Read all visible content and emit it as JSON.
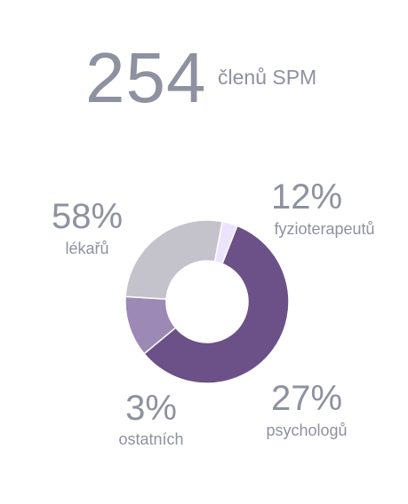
{
  "headline": {
    "count": "254",
    "caption": "členů SPM"
  },
  "chart_data": {
    "type": "pie",
    "style": "donut",
    "categories": [
      "lékařů",
      "fyzioterapeutů",
      "psychologů",
      "ostatních"
    ],
    "values": [
      58,
      12,
      27,
      3
    ],
    "value_labels": [
      "58%",
      "12%",
      "27%",
      "3%"
    ],
    "unit": "%",
    "colors": [
      "#6b5187",
      "#9c89b5",
      "#c4c3cb",
      "#ece3fd"
    ],
    "legend": "none"
  }
}
